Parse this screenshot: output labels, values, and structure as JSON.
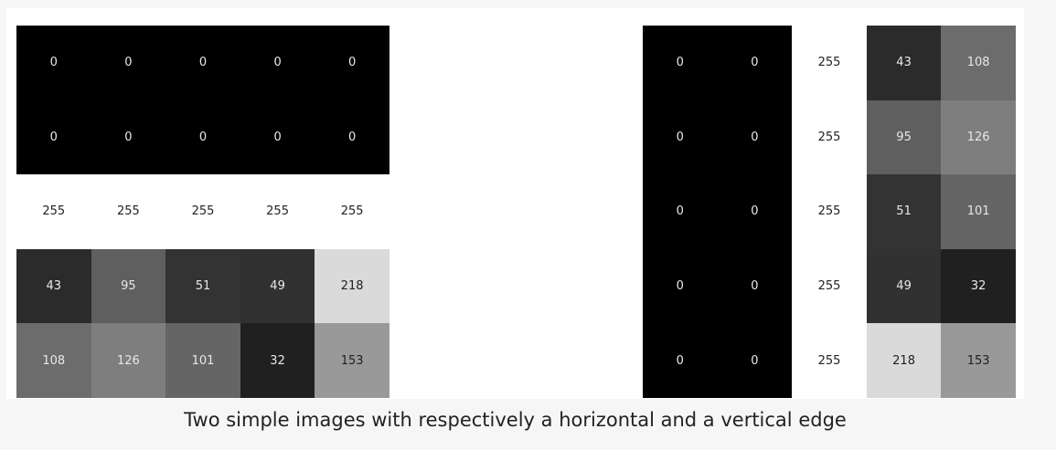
{
  "figures": [
    {
      "id": "horizontal-edge",
      "values": [
        [
          0,
          0,
          0,
          0,
          0
        ],
        [
          0,
          0,
          0,
          0,
          0
        ],
        [
          255,
          255,
          255,
          255,
          255
        ],
        [
          43,
          95,
          51,
          49,
          218
        ],
        [
          108,
          126,
          101,
          32,
          153
        ]
      ]
    },
    {
      "id": "vertical-edge",
      "values": [
        [
          0,
          0,
          255,
          43,
          108
        ],
        [
          0,
          0,
          255,
          95,
          126
        ],
        [
          0,
          0,
          255,
          51,
          101
        ],
        [
          0,
          0,
          255,
          49,
          32
        ],
        [
          0,
          0,
          255,
          218,
          153
        ]
      ]
    }
  ],
  "caption": "Two simple images with respectively a horizontal and a vertical edge"
}
